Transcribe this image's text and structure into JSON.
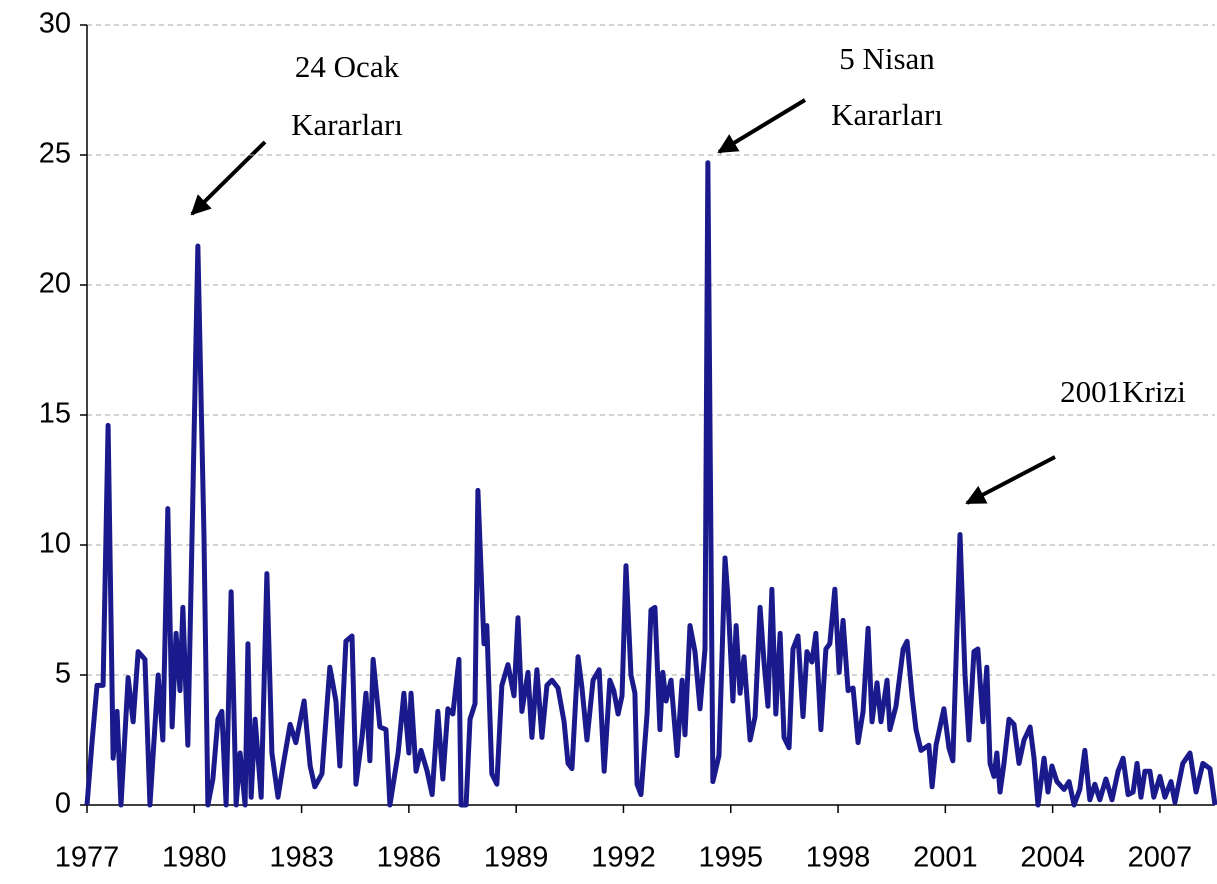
{
  "chart_data": {
    "type": "line",
    "series": [
      {
        "color": "#1a1a8c",
        "x": [
          1977.0,
          1977.14,
          1977.28,
          1977.45,
          1977.59,
          1977.73,
          1977.84,
          1977.95,
          1978.15,
          1978.29,
          1978.43,
          1978.62,
          1978.76,
          1978.99,
          1979.12,
          1979.26,
          1979.38,
          1979.49,
          1979.6,
          1979.68,
          1979.82,
          1980.1,
          1980.27,
          1980.38,
          1980.52,
          1980.66,
          1980.77,
          1980.89,
          1981.03,
          1981.17,
          1981.28,
          1981.42,
          1981.5,
          1981.59,
          1981.7,
          1981.87,
          1982.03,
          1982.17,
          1982.34,
          1982.48,
          1982.68,
          1982.84,
          1983.07,
          1983.24,
          1983.37,
          1983.57,
          1983.79,
          1983.96,
          1984.07,
          1984.24,
          1984.41,
          1984.52,
          1984.69,
          1984.8,
          1984.91,
          1985.0,
          1985.19,
          1985.36,
          1985.47,
          1985.7,
          1985.86,
          1986.0,
          1986.06,
          1986.2,
          1986.34,
          1986.51,
          1986.65,
          1986.81,
          1986.95,
          1987.09,
          1987.23,
          1987.4,
          1987.46,
          1987.6,
          1987.71,
          1987.85,
          1987.93,
          1988.1,
          1988.18,
          1988.32,
          1988.46,
          1988.6,
          1988.77,
          1988.94,
          1989.05,
          1989.16,
          1989.33,
          1989.44,
          1989.58,
          1989.72,
          1989.86,
          1990.0,
          1990.17,
          1990.34,
          1990.45,
          1990.56,
          1990.73,
          1990.84,
          1990.98,
          1991.15,
          1991.32,
          1991.46,
          1991.62,
          1991.73,
          1991.85,
          1991.96,
          1992.07,
          1992.21,
          1992.32,
          1992.38,
          1992.49,
          1992.66,
          1992.77,
          1992.88,
          1993.02,
          1993.1,
          1993.19,
          1993.33,
          1993.5,
          1993.64,
          1993.72,
          1993.86,
          1994.0,
          1994.14,
          1994.28,
          1994.36,
          1994.5,
          1994.67,
          1994.84,
          1994.92,
          1995.06,
          1995.15,
          1995.26,
          1995.37,
          1995.54,
          1995.68,
          1995.82,
          1995.93,
          1996.04,
          1996.15,
          1996.26,
          1996.38,
          1996.49,
          1996.63,
          1996.74,
          1996.88,
          1997.02,
          1997.13,
          1997.27,
          1997.38,
          1997.52,
          1997.66,
          1997.77,
          1997.91,
          1998.03,
          1998.14,
          1998.28,
          1998.42,
          1998.56,
          1998.7,
          1998.84,
          1998.95,
          1999.09,
          1999.2,
          1999.37,
          1999.45,
          1999.62,
          1999.82,
          1999.93,
          2000.07,
          2000.18,
          2000.32,
          2000.54,
          2000.63,
          2000.74,
          2000.96,
          2001.1,
          2001.21,
          2001.41,
          2001.55,
          2001.66,
          2001.8,
          2001.91,
          2002.05,
          2002.16,
          2002.25,
          2002.36,
          2002.44,
          2002.53,
          2002.64,
          2002.78,
          2002.92,
          2003.06,
          2003.2,
          2003.37,
          2003.48,
          2003.59,
          2003.76,
          2003.87,
          2003.98,
          2004.12,
          2004.32,
          2004.46,
          2004.6,
          2004.76,
          2004.9,
          2005.04,
          2005.18,
          2005.32,
          2005.49,
          2005.66,
          2005.83,
          2005.97,
          2006.11,
          2006.25,
          2006.36,
          2006.47,
          2006.58,
          2006.72,
          2006.83,
          2007.0,
          2007.14,
          2007.31,
          2007.42,
          2007.64,
          2007.84,
          2008.01,
          2008.2,
          2008.4,
          2008.54
        ],
        "values": [
          0,
          2.4,
          4.6,
          4.6,
          14.6,
          1.8,
          3.6,
          0,
          4.9,
          3.2,
          5.9,
          5.6,
          0,
          5,
          2.5,
          11.4,
          3,
          6.6,
          4.4,
          7.6,
          2.3,
          21.5,
          10.4,
          0,
          1,
          3.3,
          3.6,
          0,
          8.2,
          0,
          2,
          0,
          6.2,
          0.3,
          3.3,
          0.3,
          8.9,
          2,
          0.3,
          1.5,
          3.1,
          2.4,
          4,
          1.5,
          0.7,
          1.2,
          5.3,
          4,
          1.5,
          6.3,
          6.5,
          0.8,
          2.6,
          4.3,
          1.7,
          5.6,
          3,
          2.9,
          0,
          2,
          4.3,
          2,
          4.3,
          1.3,
          2.1,
          1.3,
          0.4,
          3.6,
          1,
          3.7,
          3.5,
          5.6,
          0,
          0,
          3.3,
          3.9,
          12.1,
          6.2,
          6.9,
          1.2,
          0.8,
          4.6,
          5.4,
          4.2,
          7.2,
          3.6,
          5.1,
          2.6,
          5.2,
          2.6,
          4.6,
          4.8,
          4.5,
          3.2,
          1.6,
          1.4,
          5.7,
          4.5,
          2.5,
          4.8,
          5.2,
          1.3,
          4.8,
          4.4,
          3.5,
          4.2,
          9.2,
          5,
          4.3,
          0.8,
          0.4,
          3.5,
          7.5,
          7.6,
          2.9,
          5.1,
          4,
          4.8,
          1.9,
          4.8,
          2.7,
          6.9,
          5.9,
          3.7,
          6,
          24.7,
          0.9,
          1.9,
          9.5,
          8,
          4,
          6.9,
          4.3,
          5.7,
          2.5,
          3.4,
          7.6,
          5.5,
          3.8,
          8.3,
          3.5,
          6.6,
          2.6,
          2.2,
          6,
          6.5,
          3.4,
          5.9,
          5.5,
          6.6,
          2.9,
          6,
          6.2,
          8.3,
          5.1,
          7.1,
          4.4,
          4.5,
          2.4,
          3.6,
          6.8,
          3.2,
          4.7,
          3.2,
          4.8,
          2.9,
          3.8,
          6,
          6.3,
          4.2,
          2.9,
          2.1,
          2.3,
          0.7,
          2.3,
          3.7,
          2.2,
          1.7,
          10.4,
          5,
          2.5,
          5.9,
          6,
          3.2,
          5.3,
          1.6,
          1.1,
          2,
          0.5,
          1.6,
          3.3,
          3.1,
          1.6,
          2.5,
          3,
          1.8,
          0,
          1.8,
          0.5,
          1.5,
          0.9,
          0.6,
          0.9,
          0,
          0.6,
          2.1,
          0.2,
          0.8,
          0.2,
          1,
          0.2,
          1.3,
          1.8,
          0.4,
          0.5,
          1.6,
          0.3,
          1.3,
          1.3,
          0.3,
          1.1,
          0.3,
          0.9,
          0.1,
          1.6,
          2,
          0.5,
          1.6,
          1.4,
          0
        ]
      }
    ],
    "xlim": [
      1977,
      2008.54
    ],
    "xticks": [
      1977,
      1980,
      1983,
      1986,
      1989,
      1992,
      1995,
      1998,
      2001,
      2004,
      2007
    ],
    "ylim": [
      0,
      30
    ],
    "yticks": [
      0,
      5,
      10,
      15,
      20,
      25,
      30
    ],
    "grid": true,
    "annotations": [
      {
        "lines": [
          "24 Ocak",
          "Kararları"
        ]
      },
      {
        "lines": [
          "5 Nisan",
          "Kararları"
        ]
      },
      {
        "lines": [
          "2001Krizi"
        ]
      }
    ]
  }
}
